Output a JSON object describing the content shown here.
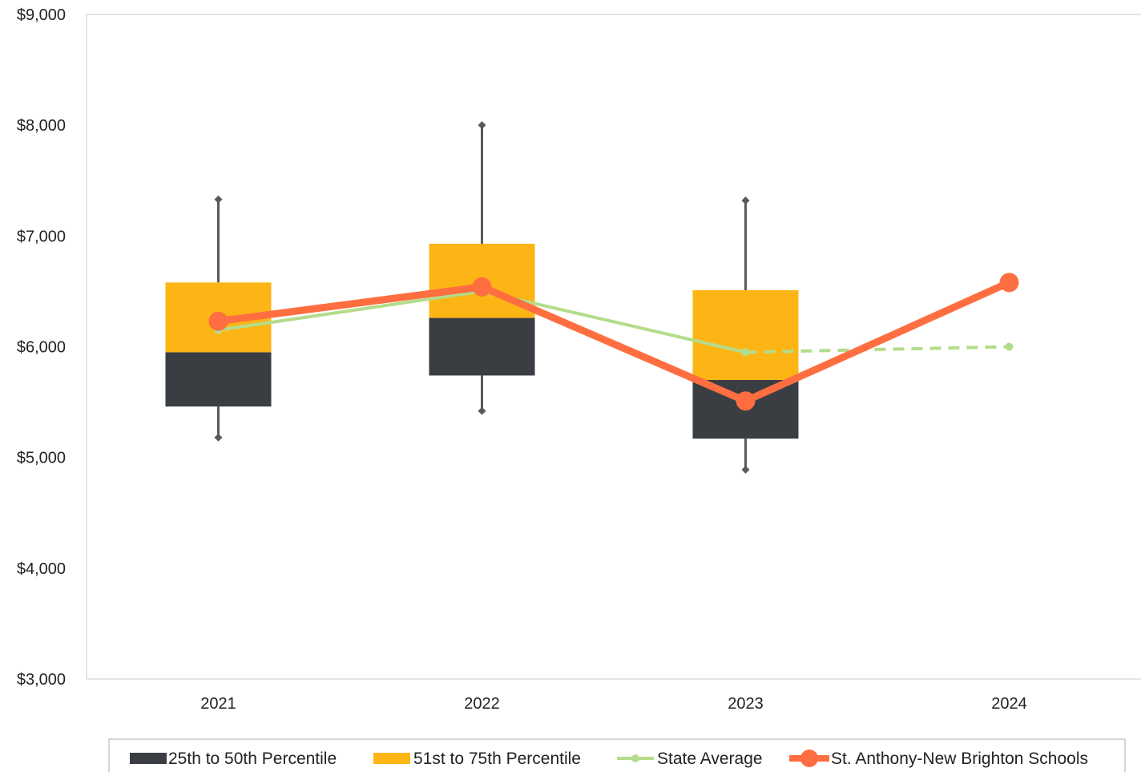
{
  "chart_data": {
    "type": "box",
    "categories": [
      "2021",
      "2022",
      "2023",
      "2024"
    ],
    "ylim": [
      3000,
      9000
    ],
    "y_ticks": [
      3000,
      4000,
      5000,
      6000,
      7000,
      8000,
      9000
    ],
    "y_tick_labels": [
      "$3,000",
      "$4,000",
      "$5,000",
      "$6,000",
      "$7,000",
      "$8,000",
      "$9,000"
    ],
    "title": "",
    "xlabel": "",
    "ylabel": "",
    "boxes": [
      {
        "category": "2021",
        "min": 5180,
        "p25": 5460,
        "median": 5950,
        "p75": 6580,
        "max": 7330
      },
      {
        "category": "2022",
        "min": 5420,
        "p25": 5740,
        "median": 6260,
        "p75": 6930,
        "max": 8000
      },
      {
        "category": "2023",
        "min": 4890,
        "p25": 5170,
        "median": 5700,
        "p75": 6510,
        "max": 7320
      }
    ],
    "series": [
      {
        "name": "25th to 50th Percentile",
        "kind": "box-lower",
        "color": "#3a3e42"
      },
      {
        "name": "51st to 75th Percentile",
        "kind": "box-upper",
        "color": "#fdb515"
      },
      {
        "name": "State Average",
        "kind": "line",
        "color": "#b3dc8b",
        "values": [
          6150,
          6500,
          5950,
          6000
        ],
        "dashed_from_index": 2
      },
      {
        "name": "St. Anthony-New Brighton Schools",
        "kind": "line",
        "color": "#ff6e40",
        "values": [
          6230,
          6540,
          5510,
          6580
        ]
      }
    ],
    "whisker_color": "#5a5a5a",
    "grid": false,
    "legend_position": "bottom"
  }
}
